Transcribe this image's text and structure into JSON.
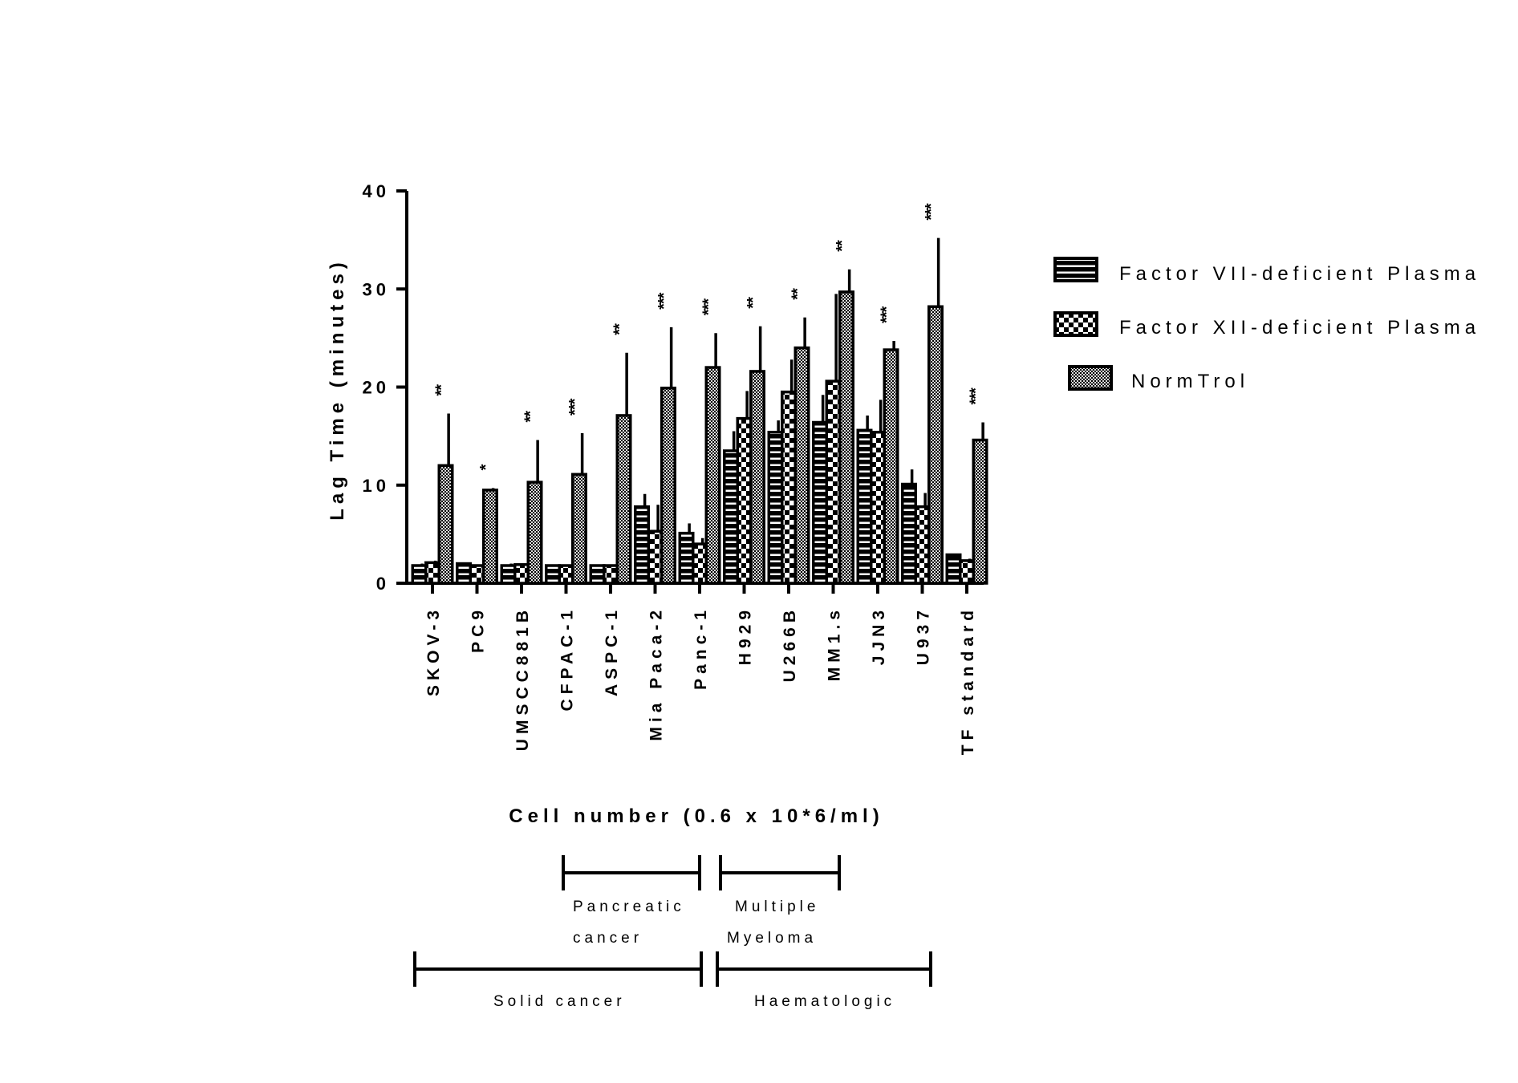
{
  "chart_data": {
    "type": "bar",
    "ylabel": "Lag Time (minutes)",
    "xlabel": "Cell number (0.6 x 10*6/ml)",
    "ylim": [
      0,
      40
    ],
    "yticks": [
      "0",
      "10",
      "20",
      "30",
      "40"
    ],
    "categories": [
      "SKOV-3",
      "PC9",
      "UMSCC881B",
      "CFPAC-1",
      "ASPC-1",
      "Mia Paca-2",
      "Panc-1",
      "H929",
      "U266B",
      "MM1.s",
      "JJN3",
      "U937",
      "TF standard"
    ],
    "series": [
      {
        "name": "Factor VII-deficient Plasma",
        "values": [
          1.8,
          2.0,
          1.8,
          1.8,
          1.8,
          7.8,
          5.1,
          13.5,
          15.4,
          16.4,
          15.6,
          10.1,
          2.9
        ],
        "errors": [
          0.2,
          0.1,
          0.2,
          0.1,
          0.1,
          1.3,
          1.0,
          2.0,
          1.2,
          2.8,
          1.5,
          1.5,
          0.1
        ]
      },
      {
        "name": "Factor XII-deficient Plasma",
        "values": [
          2.1,
          1.8,
          1.9,
          1.8,
          1.8,
          5.3,
          4.0,
          16.8,
          19.5,
          20.6,
          15.4,
          7.8,
          2.3
        ],
        "errors": [
          0.2,
          0.1,
          0.1,
          0.1,
          0.1,
          2.7,
          0.6,
          2.8,
          3.3,
          8.9,
          3.3,
          1.4,
          0.2
        ]
      },
      {
        "name": "NormTrol",
        "values": [
          12.0,
          9.5,
          10.3,
          11.1,
          17.1,
          19.9,
          22.0,
          21.6,
          24.0,
          29.7,
          23.8,
          28.2,
          14.6
        ],
        "errors": [
          5.3,
          0.2,
          4.3,
          4.2,
          6.4,
          6.2,
          3.5,
          4.6,
          3.1,
          2.3,
          0.9,
          7.0,
          1.8
        ]
      }
    ],
    "significance": [
      "**",
      "*",
      "**",
      "***",
      "**",
      "***",
      "***",
      "**",
      "**",
      "**",
      "***",
      "***",
      "***"
    ],
    "legend_position": "right",
    "grid": false
  },
  "legend": {
    "items": [
      {
        "label": "Factor VII-deficient Plasma",
        "pattern": "horizontal-stripes"
      },
      {
        "label": "Factor XII-deficient Plasma",
        "pattern": "checker-large"
      },
      {
        "label": "NormTrol",
        "pattern": "checker-small"
      }
    ]
  },
  "groups": {
    "pancreatic": [
      "Pancreatic",
      "cancer"
    ],
    "myeloma": [
      "Multiple",
      "Myeloma"
    ],
    "solid": "Solid cancer",
    "haematologic": "Haematologic"
  },
  "colors": {
    "ink": "#000000",
    "background": "#ffffff"
  }
}
